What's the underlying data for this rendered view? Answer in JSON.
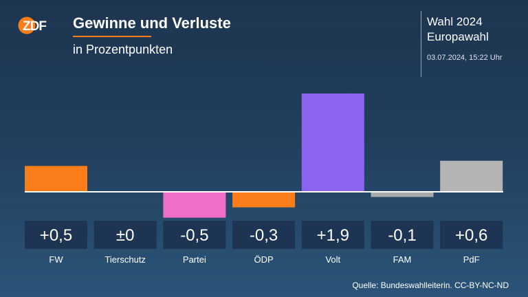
{
  "header": {
    "logo_text": "ZDF",
    "title": "Gewinne und Verluste",
    "subtitle": "in Prozentpunkten"
  },
  "info": {
    "line1": "Wahl 2024",
    "line2": "Europawahl",
    "timestamp": "03.07.2024, 15:22 Uhr"
  },
  "footer": {
    "source": "Quelle: Bundeswahlleiterin. CC-BY-NC-ND"
  },
  "colors": {
    "accent": "#fa7d19",
    "label_box": "#1d3452",
    "baseline": "#ffffff"
  },
  "chart_data": {
    "type": "bar",
    "categories": [
      "FW",
      "Tierschutz",
      "Partei",
      "ÖDP",
      "Volt",
      "FAM",
      "PdF"
    ],
    "values": [
      0.5,
      0,
      -0.5,
      -0.3,
      1.9,
      -0.1,
      0.6
    ],
    "value_labels": [
      "+0,5",
      "±0",
      "-0,5",
      "-0,3",
      "+1,9",
      "-0,1",
      "+0,6"
    ],
    "bar_colors": [
      "#fa7d19",
      "#b4b4b4",
      "#f06ec8",
      "#fa7d19",
      "#8c64f0",
      "#aaaaaa",
      "#b4b4b4"
    ],
    "title": "Gewinne und Verluste",
    "subtitle": "in Prozentpunkten",
    "xlabel": "",
    "ylabel": "",
    "grid": false,
    "legend": "none"
  }
}
